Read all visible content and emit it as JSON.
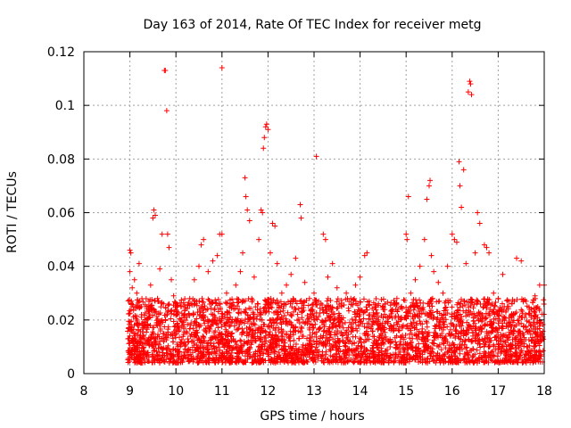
{
  "chart_data": {
    "type": "scatter",
    "title": "Day 163 of 2014, Rate Of TEC Index for receiver metg",
    "xlabel": "GPS time / hours",
    "ylabel": "ROTI / TECUs",
    "xlim": [
      8,
      18
    ],
    "ylim": [
      0,
      0.12
    ],
    "xticks": [
      8,
      9,
      10,
      11,
      12,
      13,
      14,
      15,
      16,
      17,
      18
    ],
    "yticks": [
      0,
      0.02,
      0.04,
      0.06,
      0.08,
      0.1,
      0.12
    ],
    "xtick_labels": [
      "8",
      "9",
      "10",
      "11",
      "12",
      "13",
      "14",
      "15",
      "16",
      "17",
      "18"
    ],
    "ytick_labels": [
      "0",
      "0.02",
      "0.04",
      "0.06",
      "0.08",
      "0.1",
      "0.12"
    ],
    "grid": true,
    "marker": "+",
    "color": "#ff0000",
    "series": [
      {
        "name": "ROTI",
        "points": [
          [
            9.0,
            0.046
          ],
          [
            9.0,
            0.038
          ],
          [
            9.02,
            0.045
          ],
          [
            9.05,
            0.032
          ],
          [
            9.1,
            0.035
          ],
          [
            9.15,
            0.03
          ],
          [
            9.2,
            0.041
          ],
          [
            9.25,
            0.022
          ],
          [
            9.3,
            0.018
          ],
          [
            9.4,
            0.025
          ],
          [
            9.45,
            0.033
          ],
          [
            9.5,
            0.058
          ],
          [
            9.52,
            0.061
          ],
          [
            9.55,
            0.059
          ],
          [
            9.6,
            0.028
          ],
          [
            9.65,
            0.039
          ],
          [
            9.7,
            0.052
          ],
          [
            9.75,
            0.113
          ],
          [
            9.77,
            0.113
          ],
          [
            9.8,
            0.098
          ],
          [
            9.82,
            0.052
          ],
          [
            9.85,
            0.047
          ],
          [
            9.9,
            0.035
          ],
          [
            9.95,
            0.029
          ],
          [
            10.0,
            0.022
          ],
          [
            10.1,
            0.02
          ],
          [
            10.2,
            0.024
          ],
          [
            10.3,
            0.028
          ],
          [
            10.4,
            0.035
          ],
          [
            10.5,
            0.04
          ],
          [
            10.55,
            0.048
          ],
          [
            10.6,
            0.05
          ],
          [
            10.7,
            0.038
          ],
          [
            10.8,
            0.042
          ],
          [
            10.9,
            0.044
          ],
          [
            10.95,
            0.052
          ],
          [
            11.0,
            0.114
          ],
          [
            11.0,
            0.052
          ],
          [
            11.1,
            0.03
          ],
          [
            11.2,
            0.025
          ],
          [
            11.3,
            0.033
          ],
          [
            11.4,
            0.038
          ],
          [
            11.45,
            0.045
          ],
          [
            11.5,
            0.073
          ],
          [
            11.52,
            0.066
          ],
          [
            11.55,
            0.061
          ],
          [
            11.6,
            0.057
          ],
          [
            11.7,
            0.036
          ],
          [
            11.8,
            0.05
          ],
          [
            11.85,
            0.061
          ],
          [
            11.88,
            0.06
          ],
          [
            11.9,
            0.084
          ],
          [
            11.92,
            0.088
          ],
          [
            11.95,
            0.092
          ],
          [
            11.97,
            0.093
          ],
          [
            12.0,
            0.091
          ],
          [
            12.05,
            0.045
          ],
          [
            12.1,
            0.056
          ],
          [
            12.15,
            0.055
          ],
          [
            12.2,
            0.041
          ],
          [
            12.3,
            0.03
          ],
          [
            12.4,
            0.033
          ],
          [
            12.5,
            0.037
          ],
          [
            12.6,
            0.043
          ],
          [
            12.7,
            0.063
          ],
          [
            12.72,
            0.058
          ],
          [
            12.8,
            0.034
          ],
          [
            12.9,
            0.028
          ],
          [
            13.0,
            0.03
          ],
          [
            13.05,
            0.081
          ],
          [
            13.1,
            0.027
          ],
          [
            13.2,
            0.052
          ],
          [
            13.25,
            0.05
          ],
          [
            13.3,
            0.036
          ],
          [
            13.4,
            0.041
          ],
          [
            13.5,
            0.032
          ],
          [
            13.6,
            0.025
          ],
          [
            13.7,
            0.03
          ],
          [
            13.8,
            0.028
          ],
          [
            13.9,
            0.033
          ],
          [
            14.0,
            0.036
          ],
          [
            14.1,
            0.044
          ],
          [
            14.15,
            0.045
          ],
          [
            14.2,
            0.027
          ],
          [
            14.3,
            0.022
          ],
          [
            14.4,
            0.02
          ],
          [
            14.5,
            0.024
          ],
          [
            14.6,
            0.021
          ],
          [
            14.7,
            0.023
          ],
          [
            14.8,
            0.028
          ],
          [
            14.9,
            0.025
          ],
          [
            15.0,
            0.052
          ],
          [
            15.02,
            0.05
          ],
          [
            15.05,
            0.066
          ],
          [
            15.1,
            0.03
          ],
          [
            15.2,
            0.035
          ],
          [
            15.3,
            0.04
          ],
          [
            15.4,
            0.05
          ],
          [
            15.45,
            0.065
          ],
          [
            15.5,
            0.07
          ],
          [
            15.52,
            0.072
          ],
          [
            15.55,
            0.044
          ],
          [
            15.6,
            0.038
          ],
          [
            15.7,
            0.034
          ],
          [
            15.8,
            0.03
          ],
          [
            15.9,
            0.04
          ],
          [
            16.0,
            0.052
          ],
          [
            16.05,
            0.05
          ],
          [
            16.1,
            0.049
          ],
          [
            16.15,
            0.079
          ],
          [
            16.17,
            0.07
          ],
          [
            16.2,
            0.062
          ],
          [
            16.25,
            0.076
          ],
          [
            16.3,
            0.041
          ],
          [
            16.35,
            0.105
          ],
          [
            16.38,
            0.109
          ],
          [
            16.4,
            0.108
          ],
          [
            16.42,
            0.104
          ],
          [
            16.5,
            0.045
          ],
          [
            16.55,
            0.06
          ],
          [
            16.6,
            0.056
          ],
          [
            16.7,
            0.048
          ],
          [
            16.75,
            0.047
          ],
          [
            16.8,
            0.045
          ],
          [
            16.9,
            0.03
          ],
          [
            17.0,
            0.028
          ],
          [
            17.1,
            0.037
          ],
          [
            17.2,
            0.025
          ],
          [
            17.3,
            0.026
          ],
          [
            17.4,
            0.043
          ],
          [
            17.5,
            0.042
          ],
          [
            17.6,
            0.022
          ],
          [
            17.7,
            0.018
          ],
          [
            17.8,
            0.029
          ],
          [
            17.9,
            0.033
          ],
          [
            18.0,
            0.033
          ]
        ]
      }
    ],
    "dense_band": {
      "x_range": [
        8.95,
        18.0
      ],
      "y_typical_range": [
        0.004,
        0.028
      ],
      "description_note": "dense cluster of crosses"
    }
  }
}
